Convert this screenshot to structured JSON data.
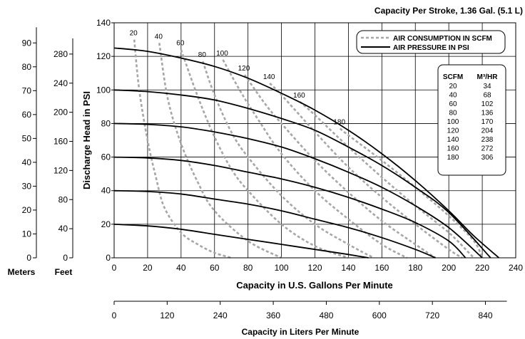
{
  "chart_data": {
    "type": "line",
    "title": "Capacity Per Stroke, 1.36 Gal. (5.1 L)",
    "xlabel": "Capacity in U.S. Gallons Per Minute",
    "ylabel": "Discharge Head in PSI",
    "xlim": [
      0,
      240
    ],
    "ylim": [
      0,
      140
    ],
    "x_ticks": [
      "0",
      "20",
      "40",
      "60",
      "80",
      "100",
      "120",
      "140",
      "160",
      "180",
      "200",
      "220",
      "240"
    ],
    "y_ticks": [
      "0",
      "20",
      "40",
      "60",
      "80",
      "100",
      "120",
      "140"
    ],
    "grid": true,
    "legend": {
      "position": "top-right",
      "items": [
        {
          "label": "AIR CONSUMPTION IN SCFM",
          "style": "dashed",
          "color": "#a6a6a6"
        },
        {
          "label": "AIR PRESSURE IN PSI",
          "style": "solid",
          "color": "#000000"
        }
      ]
    },
    "pressure_series": [
      {
        "psi": 20,
        "points": [
          [
            0,
            20
          ],
          [
            20,
            19
          ],
          [
            40,
            17
          ],
          [
            60,
            14
          ],
          [
            80,
            11
          ],
          [
            100,
            8
          ],
          [
            120,
            5
          ],
          [
            140,
            2
          ],
          [
            152,
            0
          ]
        ]
      },
      {
        "psi": 40,
        "points": [
          [
            0,
            40
          ],
          [
            20,
            39.5
          ],
          [
            40,
            38
          ],
          [
            60,
            35
          ],
          [
            80,
            32
          ],
          [
            100,
            28
          ],
          [
            120,
            23
          ],
          [
            140,
            18
          ],
          [
            160,
            12
          ],
          [
            180,
            5
          ],
          [
            192,
            0
          ]
        ]
      },
      {
        "psi": 60,
        "points": [
          [
            0,
            60
          ],
          [
            20,
            59.5
          ],
          [
            40,
            58
          ],
          [
            60,
            55
          ],
          [
            80,
            51
          ],
          [
            100,
            47
          ],
          [
            120,
            42
          ],
          [
            140,
            36
          ],
          [
            160,
            29
          ],
          [
            180,
            21
          ],
          [
            200,
            10
          ],
          [
            210,
            0
          ]
        ]
      },
      {
        "psi": 80,
        "points": [
          [
            0,
            80
          ],
          [
            20,
            79.5
          ],
          [
            40,
            78
          ],
          [
            60,
            75
          ],
          [
            80,
            71
          ],
          [
            100,
            66
          ],
          [
            120,
            59
          ],
          [
            140,
            51
          ],
          [
            160,
            42
          ],
          [
            180,
            31
          ],
          [
            200,
            18
          ],
          [
            220,
            0
          ]
        ]
      },
      {
        "psi": 100,
        "points": [
          [
            0,
            100
          ],
          [
            20,
            99
          ],
          [
            40,
            97
          ],
          [
            60,
            94
          ],
          [
            80,
            89
          ],
          [
            100,
            83
          ],
          [
            120,
            76
          ],
          [
            140,
            66
          ],
          [
            160,
            55
          ],
          [
            180,
            42
          ],
          [
            200,
            27
          ],
          [
            225,
            0
          ]
        ]
      },
      {
        "psi": 125,
        "points": [
          [
            0,
            125
          ],
          [
            20,
            123
          ],
          [
            40,
            119
          ],
          [
            60,
            114
          ],
          [
            80,
            107
          ],
          [
            100,
            98
          ],
          [
            120,
            88
          ],
          [
            140,
            76
          ],
          [
            160,
            62
          ],
          [
            180,
            46
          ],
          [
            200,
            28
          ],
          [
            215,
            13
          ],
          [
            230,
            0
          ]
        ]
      }
    ],
    "air_consumption_series": [
      {
        "scfm": 20,
        "label": "20",
        "points": [
          [
            12,
            130
          ],
          [
            15,
            100
          ],
          [
            20,
            70
          ],
          [
            25,
            48
          ],
          [
            30,
            30
          ],
          [
            40,
            15
          ],
          [
            50,
            8
          ],
          [
            60,
            3
          ],
          [
            70,
            0
          ]
        ]
      },
      {
        "scfm": 40,
        "label": "40",
        "points": [
          [
            27,
            128
          ],
          [
            32,
            95
          ],
          [
            40,
            68
          ],
          [
            50,
            45
          ],
          [
            60,
            28
          ],
          [
            80,
            10
          ],
          [
            100,
            0
          ]
        ]
      },
      {
        "scfm": 60,
        "label": "60",
        "points": [
          [
            40,
            124
          ],
          [
            50,
            96
          ],
          [
            60,
            72
          ],
          [
            70,
            53
          ],
          [
            80,
            40
          ],
          [
            100,
            20
          ],
          [
            120,
            7
          ],
          [
            140,
            0
          ]
        ]
      },
      {
        "scfm": 80,
        "label": "80",
        "points": [
          [
            53,
            117
          ],
          [
            60,
            97
          ],
          [
            70,
            75
          ],
          [
            80,
            60
          ],
          [
            100,
            37
          ],
          [
            120,
            20
          ],
          [
            140,
            8
          ],
          [
            155,
            0
          ]
        ]
      },
      {
        "scfm": 100,
        "label": "100",
        "points": [
          [
            65,
            118
          ],
          [
            75,
            100
          ],
          [
            85,
            84
          ],
          [
            100,
            62
          ],
          [
            120,
            40
          ],
          [
            140,
            23
          ],
          [
            160,
            8
          ],
          [
            175,
            0
          ]
        ]
      },
      {
        "scfm": 120,
        "label": "120",
        "points": [
          [
            78,
            109
          ],
          [
            90,
            92
          ],
          [
            100,
            80
          ],
          [
            120,
            58
          ],
          [
            140,
            39
          ],
          [
            160,
            22
          ],
          [
            180,
            8
          ],
          [
            192,
            0
          ]
        ]
      },
      {
        "scfm": 140,
        "label": "140",
        "points": [
          [
            93,
            104
          ],
          [
            100,
            97
          ],
          [
            120,
            75
          ],
          [
            140,
            54
          ],
          [
            160,
            36
          ],
          [
            180,
            20
          ],
          [
            200,
            5
          ],
          [
            208,
            0
          ]
        ]
      },
      {
        "scfm": 160,
        "label": "160",
        "points": [
          [
            111,
            93
          ],
          [
            120,
            85
          ],
          [
            140,
            66
          ],
          [
            160,
            48
          ],
          [
            180,
            31
          ],
          [
            200,
            15
          ],
          [
            212,
            3
          ],
          [
            215,
            0
          ]
        ]
      },
      {
        "scfm": 180,
        "label": "180",
        "points": [
          [
            135,
            77
          ],
          [
            140,
            73
          ],
          [
            160,
            58
          ],
          [
            180,
            42
          ],
          [
            200,
            25
          ],
          [
            215,
            10
          ],
          [
            220,
            0
          ]
        ]
      }
    ],
    "secondary_x_axis": {
      "label": "Capacity in Liters Per Minute",
      "ticks": [
        "0",
        "120",
        "240",
        "360",
        "480",
        "600",
        "720",
        "840"
      ],
      "values": [
        0,
        120,
        240,
        360,
        480,
        600,
        720,
        840
      ],
      "gpm_per_unit": 0.26417
    },
    "secondary_y_axes": [
      {
        "label": "Feet",
        "ticks": [
          "0",
          "40",
          "80",
          "120",
          "160",
          "200",
          "240",
          "280"
        ],
        "values": [
          0,
          40,
          80,
          120,
          160,
          200,
          240,
          280
        ],
        "psi_per_unit": 0.4335
      },
      {
        "label": "Meters",
        "ticks": [
          "0",
          "10",
          "20",
          "30",
          "40",
          "50",
          "60",
          "70",
          "80",
          "90"
        ],
        "values": [
          0,
          10,
          20,
          30,
          40,
          50,
          60,
          70,
          80,
          90
        ],
        "psi_per_unit": 1.4223
      }
    ],
    "conversion_table": {
      "headers": [
        "SCFM",
        "M³/HR"
      ],
      "rows": [
        [
          "20",
          "34"
        ],
        [
          "40",
          "68"
        ],
        [
          "60",
          "102"
        ],
        [
          "80",
          "136"
        ],
        [
          "100",
          "170"
        ],
        [
          "120",
          "204"
        ],
        [
          "140",
          "238"
        ],
        [
          "160",
          "272"
        ],
        [
          "180",
          "306"
        ]
      ]
    }
  }
}
